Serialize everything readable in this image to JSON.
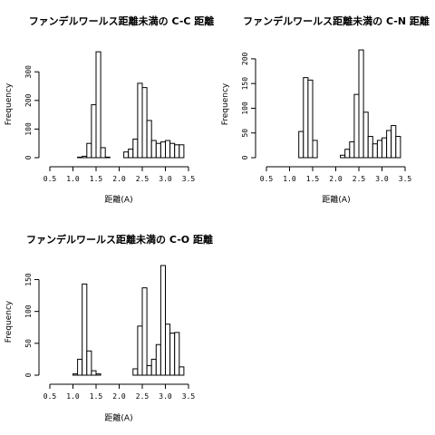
{
  "chart_data": [
    {
      "type": "bar",
      "title": "ファンデルワールス距離未満の C-C 距離",
      "xlabel": "距離(A)",
      "ylabel": "Frequency",
      "xlim": [
        0.5,
        3.5
      ],
      "ylim": [
        0,
        380
      ],
      "xticks": [
        "0.5",
        "1.0",
        "1.5",
        "2.0",
        "2.5",
        "3.0",
        "3.5"
      ],
      "yticks": [
        0,
        100,
        200,
        300
      ],
      "bin_width": 0.1,
      "bins": [
        {
          "x0": 0.5,
          "value": 0
        },
        {
          "x0": 0.6,
          "value": 0
        },
        {
          "x0": 0.7,
          "value": 0
        },
        {
          "x0": 0.8,
          "value": 0
        },
        {
          "x0": 0.9,
          "value": 0
        },
        {
          "x0": 1.0,
          "value": 0
        },
        {
          "x0": 1.1,
          "value": 2
        },
        {
          "x0": 1.2,
          "value": 5
        },
        {
          "x0": 1.3,
          "value": 50
        },
        {
          "x0": 1.4,
          "value": 185
        },
        {
          "x0": 1.5,
          "value": 370
        },
        {
          "x0": 1.6,
          "value": 35
        },
        {
          "x0": 1.7,
          "value": 2
        },
        {
          "x0": 1.8,
          "value": 0
        },
        {
          "x0": 1.9,
          "value": 0
        },
        {
          "x0": 2.0,
          "value": 0
        },
        {
          "x0": 2.1,
          "value": 20
        },
        {
          "x0": 2.2,
          "value": 30
        },
        {
          "x0": 2.3,
          "value": 65
        },
        {
          "x0": 2.4,
          "value": 260
        },
        {
          "x0": 2.5,
          "value": 245
        },
        {
          "x0": 2.6,
          "value": 130
        },
        {
          "x0": 2.7,
          "value": 60
        },
        {
          "x0": 2.8,
          "value": 50
        },
        {
          "x0": 2.9,
          "value": 55
        },
        {
          "x0": 3.0,
          "value": 60
        },
        {
          "x0": 3.1,
          "value": 50
        },
        {
          "x0": 3.2,
          "value": 45
        },
        {
          "x0": 3.3,
          "value": 45
        }
      ]
    },
    {
      "type": "bar",
      "title": "ファンデルワールス距離未満の C-N 距離",
      "xlabel": "距離(A)",
      "ylabel": "Frequency",
      "xlim": [
        0.5,
        3.5
      ],
      "ylim": [
        0,
        220
      ],
      "xticks": [
        "0.5",
        "1.0",
        "1.5",
        "2.0",
        "2.5",
        "3.0",
        "3.5"
      ],
      "yticks": [
        0,
        50,
        100,
        150,
        200
      ],
      "bin_width": 0.1,
      "bins": [
        {
          "x0": 0.5,
          "value": 0
        },
        {
          "x0": 0.6,
          "value": 0
        },
        {
          "x0": 0.7,
          "value": 0
        },
        {
          "x0": 0.8,
          "value": 0
        },
        {
          "x0": 0.9,
          "value": 0
        },
        {
          "x0": 1.0,
          "value": 0
        },
        {
          "x0": 1.1,
          "value": 0
        },
        {
          "x0": 1.2,
          "value": 53
        },
        {
          "x0": 1.3,
          "value": 162
        },
        {
          "x0": 1.4,
          "value": 157
        },
        {
          "x0": 1.5,
          "value": 35
        },
        {
          "x0": 1.6,
          "value": 0
        },
        {
          "x0": 1.7,
          "value": 0
        },
        {
          "x0": 1.8,
          "value": 0
        },
        {
          "x0": 1.9,
          "value": 0
        },
        {
          "x0": 2.0,
          "value": 0
        },
        {
          "x0": 2.1,
          "value": 5
        },
        {
          "x0": 2.2,
          "value": 17
        },
        {
          "x0": 2.3,
          "value": 32
        },
        {
          "x0": 2.4,
          "value": 128
        },
        {
          "x0": 2.5,
          "value": 218
        },
        {
          "x0": 2.6,
          "value": 92
        },
        {
          "x0": 2.7,
          "value": 43
        },
        {
          "x0": 2.8,
          "value": 28
        },
        {
          "x0": 2.9,
          "value": 35
        },
        {
          "x0": 3.0,
          "value": 40
        },
        {
          "x0": 3.1,
          "value": 55
        },
        {
          "x0": 3.2,
          "value": 65
        },
        {
          "x0": 3.3,
          "value": 43
        }
      ]
    },
    {
      "type": "bar",
      "title": "ファンデルワールス距離未満の C-O 距離",
      "xlabel": "距離(A)",
      "ylabel": "Frequency",
      "xlim": [
        0.5,
        3.5
      ],
      "ylim": [
        0,
        172
      ],
      "xticks": [
        "0.5",
        "1.0",
        "1.5",
        "2.0",
        "2.5",
        "3.0",
        "3.5"
      ],
      "yticks": [
        0,
        50,
        100,
        150
      ],
      "bin_width": 0.1,
      "bins": [
        {
          "x0": 0.5,
          "value": 0
        },
        {
          "x0": 0.6,
          "value": 0
        },
        {
          "x0": 0.7,
          "value": 0
        },
        {
          "x0": 0.8,
          "value": 0
        },
        {
          "x0": 0.9,
          "value": 0
        },
        {
          "x0": 1.0,
          "value": 2
        },
        {
          "x0": 1.1,
          "value": 25
        },
        {
          "x0": 1.2,
          "value": 143
        },
        {
          "x0": 1.3,
          "value": 38
        },
        {
          "x0": 1.4,
          "value": 7
        },
        {
          "x0": 1.5,
          "value": 2
        },
        {
          "x0": 1.6,
          "value": 0
        },
        {
          "x0": 1.7,
          "value": 0
        },
        {
          "x0": 1.8,
          "value": 0
        },
        {
          "x0": 1.9,
          "value": 0
        },
        {
          "x0": 2.0,
          "value": 0
        },
        {
          "x0": 2.1,
          "value": 0
        },
        {
          "x0": 2.2,
          "value": 0
        },
        {
          "x0": 2.3,
          "value": 10
        },
        {
          "x0": 2.4,
          "value": 77
        },
        {
          "x0": 2.5,
          "value": 137
        },
        {
          "x0": 2.6,
          "value": 15
        },
        {
          "x0": 2.7,
          "value": 25
        },
        {
          "x0": 2.8,
          "value": 48
        },
        {
          "x0": 2.9,
          "value": 172
        },
        {
          "x0": 3.0,
          "value": 80
        },
        {
          "x0": 3.1,
          "value": 66
        },
        {
          "x0": 3.2,
          "value": 67
        },
        {
          "x0": 3.3,
          "value": 13
        }
      ]
    }
  ]
}
